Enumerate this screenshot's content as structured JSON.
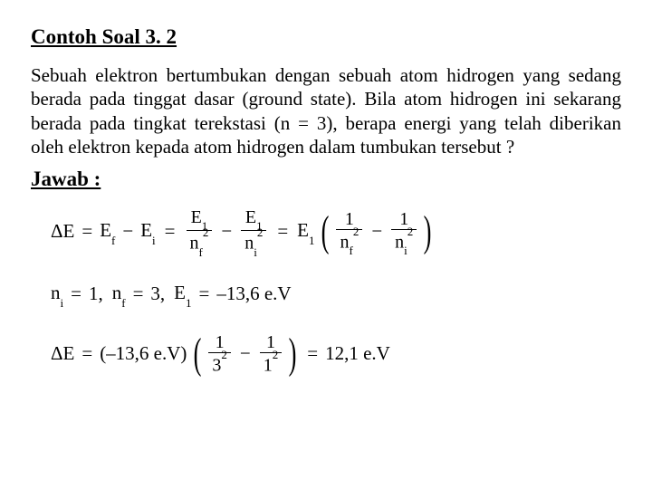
{
  "title": "Contoh Soal 3. 2",
  "paragraph": "Sebuah elektron bertumbukan dengan sebuah atom hidrogen yang sedang berada pada tinggat dasar (ground state). Bila atom hidrogen ini sekarang berada pada tingkat terekstasi (n = 3), berapa energi yang telah diberikan oleh elektron kepada atom hidrogen dalam tumbukan tersebut ?",
  "answer_label": "Jawab :",
  "sym": {
    "DeltaE": "ΔE",
    "Ef": "E",
    "Ef_sub": "f",
    "Ei": "E",
    "Ei_sub": "i",
    "E1": "E",
    "E1_sub": "1",
    "nf": "n",
    "nf_sub": "f",
    "ni": "n",
    "ni_sub": "i",
    "one": "1",
    "sq": "2",
    "eq": "=",
    "minus": "−",
    "comma_minus": "–"
  },
  "line2": {
    "ni_lhs": "n",
    "ni_sub": "i",
    "ni_val": "1,",
    "nf_lhs": "n",
    "nf_sub": "f",
    "nf_val": "3,",
    "E1_lhs": "E",
    "E1_sub": "1",
    "E1_val": "–13,6 e.V"
  },
  "line3": {
    "coef": "(–13,6 e.V)",
    "d1": "3",
    "d2": "1",
    "result": "12,1 e.V"
  }
}
